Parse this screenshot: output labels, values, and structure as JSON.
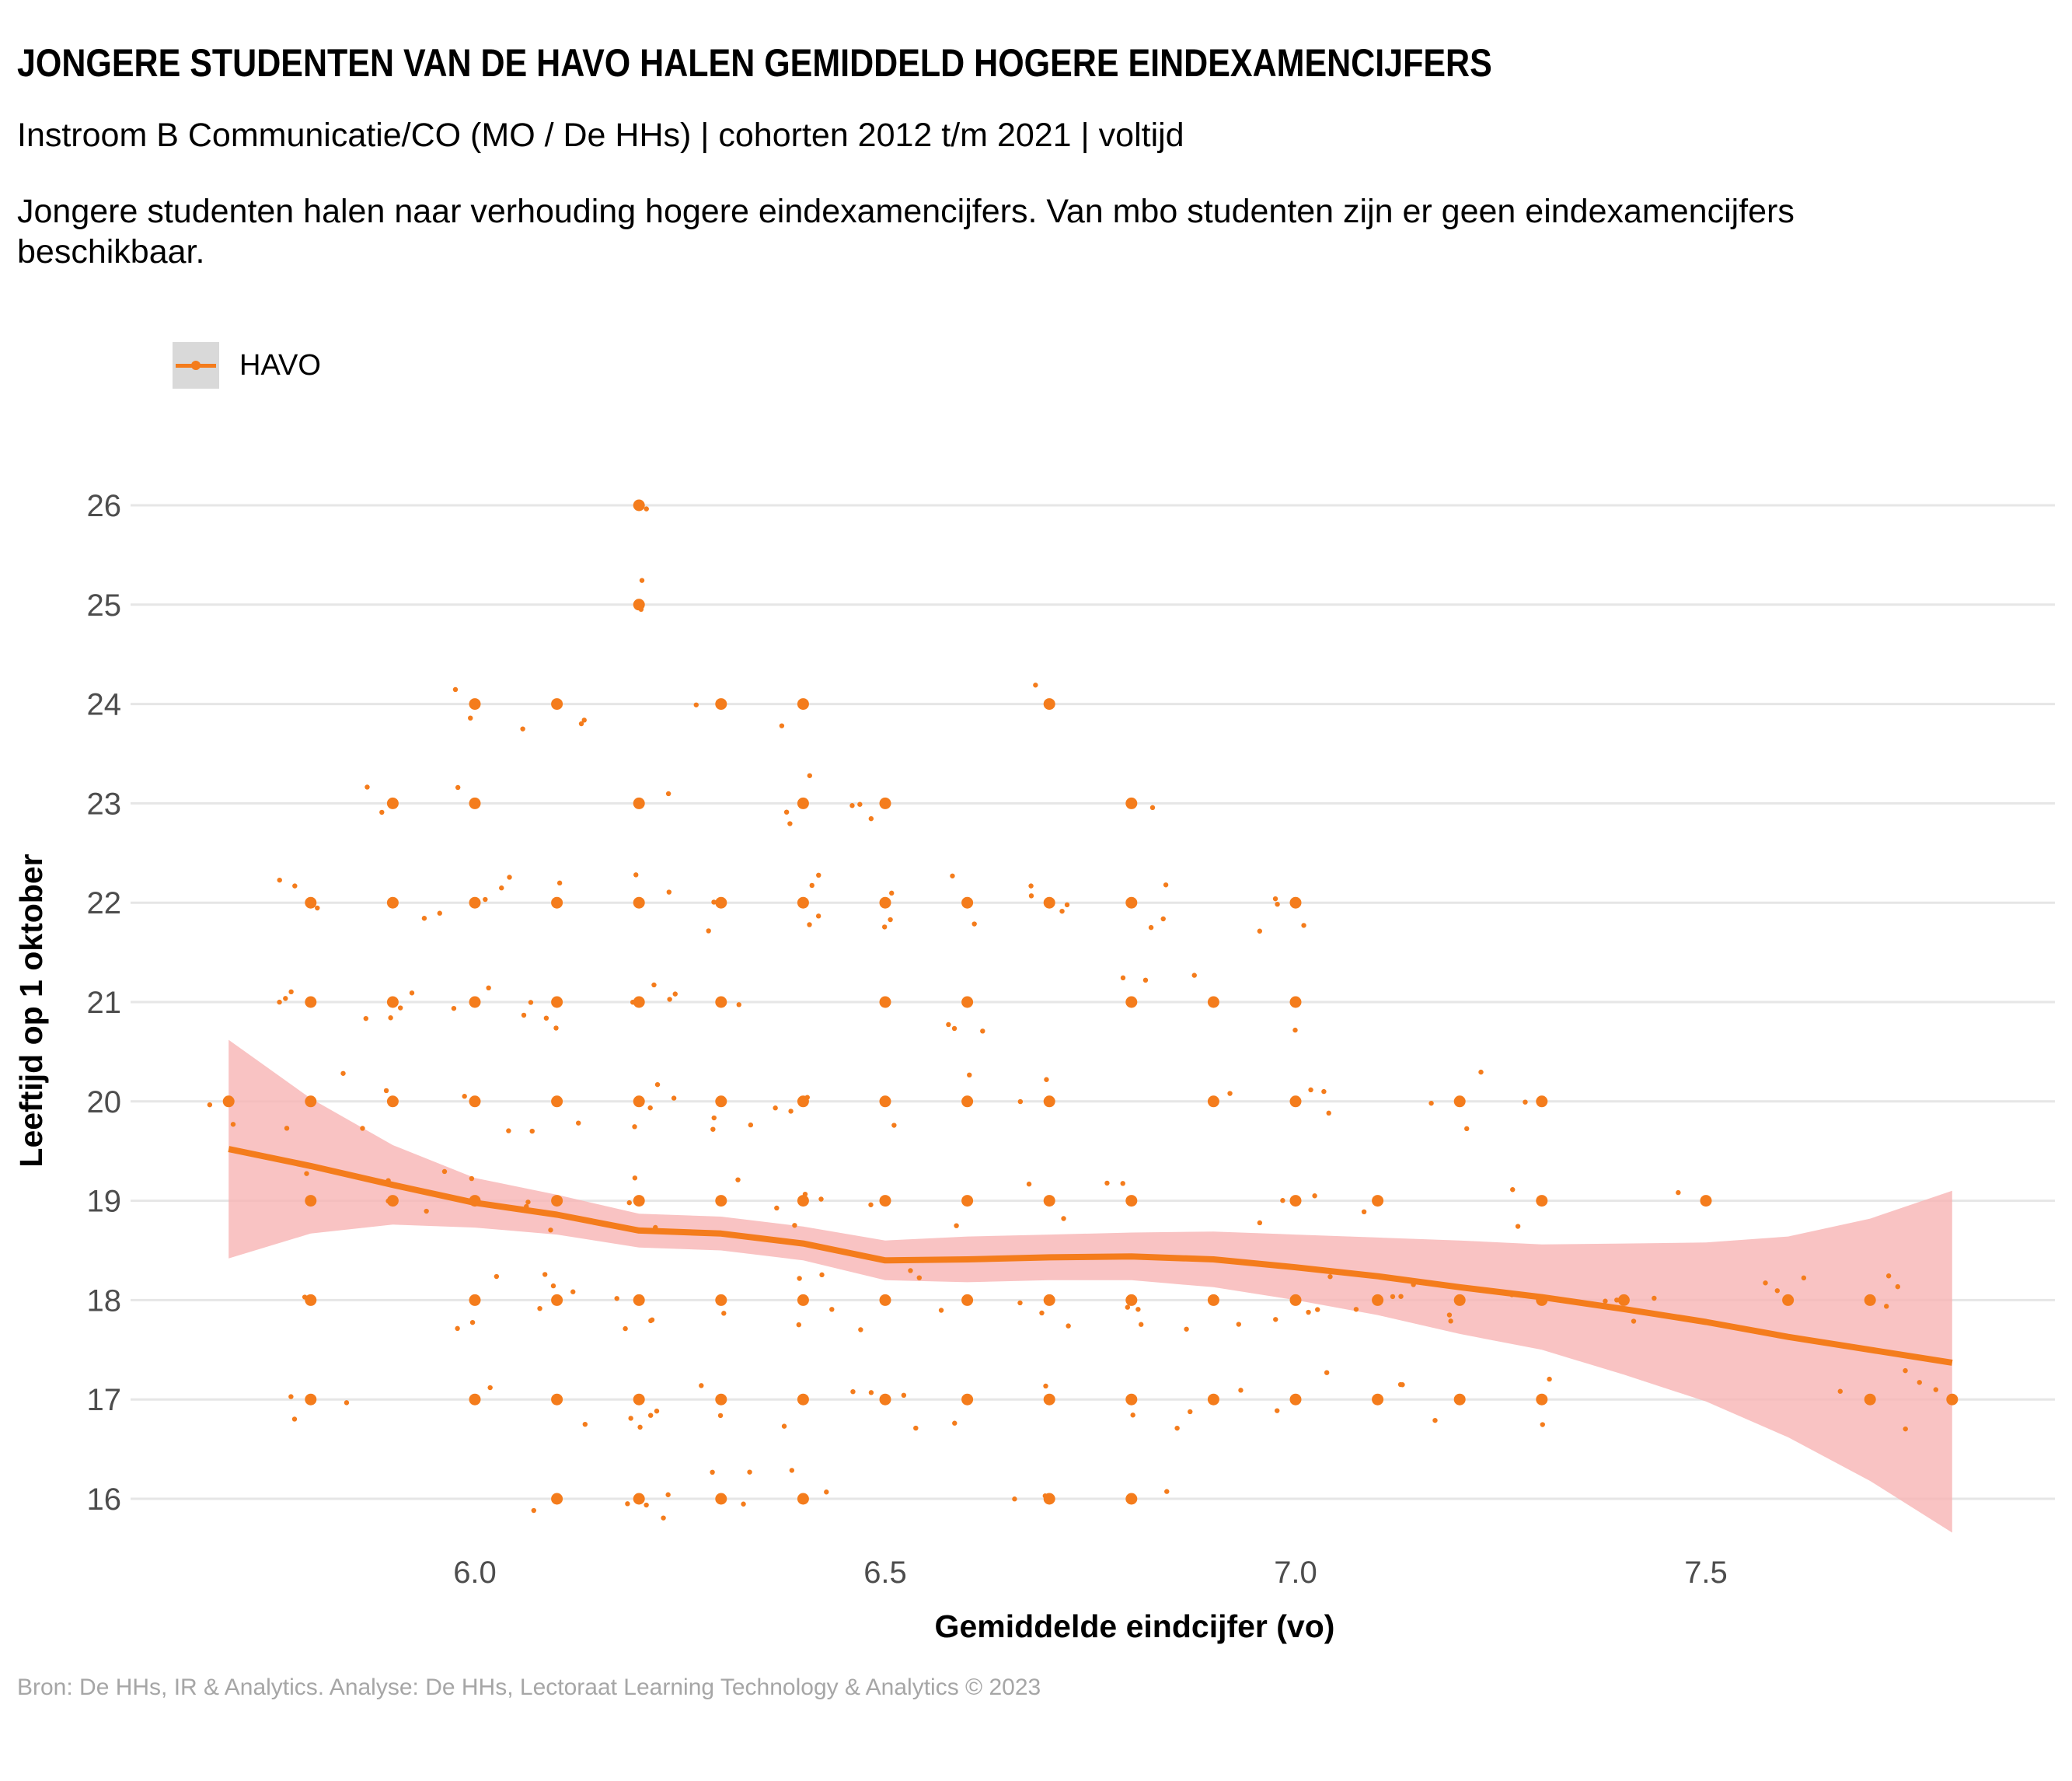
{
  "title": "JONGERE STUDENTEN VAN DE HAVO HALEN GEMIDDELD HOGERE EINDEXAMENCIJFERS",
  "subtitle": "Instroom B Communicatie/CO (MO / De HHs) | cohorten 2012 t/m 2021 | voltijd",
  "caption": "Jongere studenten halen naar verhouding hogere eindexamencijfers. Van mbo studenten zijn er geen eindexamencijfers beschikbaar.",
  "source": "Bron: De HHs, IR & Analytics. Analyse: De HHs, Lectoraat Learning Technology & Analytics © 2023",
  "colors": {
    "series": "#f47c1c",
    "ribbon": "#f8b4b4",
    "grid": "#e6e6e6",
    "legend_key_bg": "#d9d9d9"
  },
  "chart_data": {
    "type": "scatter",
    "title": "JONGERE STUDENTEN VAN DE HAVO HALEN GEMIDDELD HOGERE EINDEXAMENCIJFERS",
    "xlabel": "Gemiddelde eindcijfer (vo)",
    "ylabel": "Leeftijd op 1 oktober",
    "xlim": [
      5.56,
      8.0
    ],
    "ylim": [
      15.7,
      26.3
    ],
    "x_ticks": [
      "6.0",
      "6.5",
      "7.0",
      "7.5"
    ],
    "y_ticks": [
      "16",
      "17",
      "18",
      "19",
      "20",
      "21",
      "22",
      "23",
      "24",
      "25",
      "26"
    ],
    "grid": "horizontal major",
    "legend": {
      "position": "top-left",
      "entries": [
        "HAVO"
      ]
    },
    "series": [
      {
        "name": "HAVO",
        "points": [
          [
            5.7,
            20
          ],
          [
            5.8,
            22
          ],
          [
            5.8,
            21
          ],
          [
            5.8,
            20
          ],
          [
            5.8,
            19
          ],
          [
            5.8,
            18
          ],
          [
            5.8,
            17
          ],
          [
            5.9,
            23
          ],
          [
            5.9,
            22
          ],
          [
            5.9,
            21
          ],
          [
            5.9,
            20
          ],
          [
            5.9,
            19
          ],
          [
            6.0,
            24
          ],
          [
            6.0,
            23
          ],
          [
            6.0,
            22
          ],
          [
            6.0,
            21
          ],
          [
            6.0,
            20
          ],
          [
            6.0,
            19
          ],
          [
            6.0,
            18
          ],
          [
            6.0,
            17
          ],
          [
            6.1,
            24
          ],
          [
            6.1,
            22
          ],
          [
            6.1,
            21
          ],
          [
            6.1,
            20
          ],
          [
            6.1,
            19
          ],
          [
            6.1,
            18
          ],
          [
            6.1,
            17
          ],
          [
            6.1,
            16
          ],
          [
            6.2,
            26
          ],
          [
            6.2,
            25
          ],
          [
            6.2,
            23
          ],
          [
            6.2,
            22
          ],
          [
            6.2,
            21
          ],
          [
            6.2,
            20
          ],
          [
            6.2,
            19
          ],
          [
            6.2,
            18
          ],
          [
            6.2,
            17
          ],
          [
            6.2,
            16
          ],
          [
            6.3,
            24
          ],
          [
            6.3,
            22
          ],
          [
            6.3,
            21
          ],
          [
            6.3,
            20
          ],
          [
            6.3,
            19
          ],
          [
            6.3,
            18
          ],
          [
            6.3,
            17
          ],
          [
            6.3,
            16
          ],
          [
            6.4,
            24
          ],
          [
            6.4,
            23
          ],
          [
            6.4,
            22
          ],
          [
            6.4,
            20
          ],
          [
            6.4,
            19
          ],
          [
            6.4,
            18
          ],
          [
            6.4,
            17
          ],
          [
            6.4,
            16
          ],
          [
            6.5,
            23
          ],
          [
            6.5,
            22
          ],
          [
            6.5,
            21
          ],
          [
            6.5,
            20
          ],
          [
            6.5,
            19
          ],
          [
            6.5,
            18
          ],
          [
            6.5,
            17
          ],
          [
            6.6,
            22
          ],
          [
            6.6,
            21
          ],
          [
            6.6,
            20
          ],
          [
            6.6,
            19
          ],
          [
            6.6,
            18
          ],
          [
            6.6,
            17
          ],
          [
            6.7,
            24
          ],
          [
            6.7,
            22
          ],
          [
            6.7,
            20
          ],
          [
            6.7,
            19
          ],
          [
            6.7,
            18
          ],
          [
            6.7,
            17
          ],
          [
            6.7,
            16
          ],
          [
            6.8,
            23
          ],
          [
            6.8,
            22
          ],
          [
            6.8,
            21
          ],
          [
            6.8,
            19
          ],
          [
            6.8,
            18
          ],
          [
            6.8,
            17
          ],
          [
            6.8,
            16
          ],
          [
            6.9,
            21
          ],
          [
            6.9,
            20
          ],
          [
            6.9,
            18
          ],
          [
            6.9,
            17
          ],
          [
            7.0,
            22
          ],
          [
            7.0,
            21
          ],
          [
            7.0,
            20
          ],
          [
            7.0,
            19
          ],
          [
            7.0,
            18
          ],
          [
            7.0,
            17
          ],
          [
            7.1,
            19
          ],
          [
            7.1,
            18
          ],
          [
            7.1,
            17
          ],
          [
            7.2,
            20
          ],
          [
            7.2,
            18
          ],
          [
            7.2,
            17
          ],
          [
            7.3,
            20
          ],
          [
            7.3,
            19
          ],
          [
            7.3,
            18
          ],
          [
            7.3,
            17
          ],
          [
            7.4,
            18
          ],
          [
            7.5,
            19
          ],
          [
            7.6,
            18
          ],
          [
            7.7,
            18
          ],
          [
            7.7,
            17
          ],
          [
            7.8,
            17
          ]
        ]
      }
    ],
    "trend": {
      "name": "HAVO",
      "method": "loess",
      "x": [
        5.7,
        5.8,
        5.9,
        6.0,
        6.1,
        6.2,
        6.3,
        6.4,
        6.5,
        6.6,
        6.7,
        6.8,
        6.9,
        7.0,
        7.1,
        7.2,
        7.3,
        7.4,
        7.5,
        7.6,
        7.7,
        7.8
      ],
      "y": [
        19.52,
        19.35,
        19.16,
        18.98,
        18.86,
        18.7,
        18.67,
        18.57,
        18.4,
        18.41,
        18.43,
        18.44,
        18.41,
        18.33,
        18.24,
        18.13,
        18.03,
        17.91,
        17.78,
        17.63,
        17.5,
        17.37
      ],
      "lower": [
        18.42,
        18.67,
        18.76,
        18.73,
        18.66,
        18.53,
        18.5,
        18.4,
        18.2,
        18.18,
        18.2,
        18.2,
        18.13,
        18.0,
        17.85,
        17.66,
        17.5,
        17.25,
        16.98,
        16.62,
        16.18,
        15.66
      ],
      "upper": [
        20.62,
        20.03,
        19.56,
        19.23,
        19.06,
        18.87,
        18.84,
        18.74,
        18.6,
        18.64,
        18.66,
        18.68,
        18.69,
        18.66,
        18.63,
        18.6,
        18.56,
        18.57,
        18.58,
        18.64,
        18.82,
        19.1
      ]
    }
  }
}
